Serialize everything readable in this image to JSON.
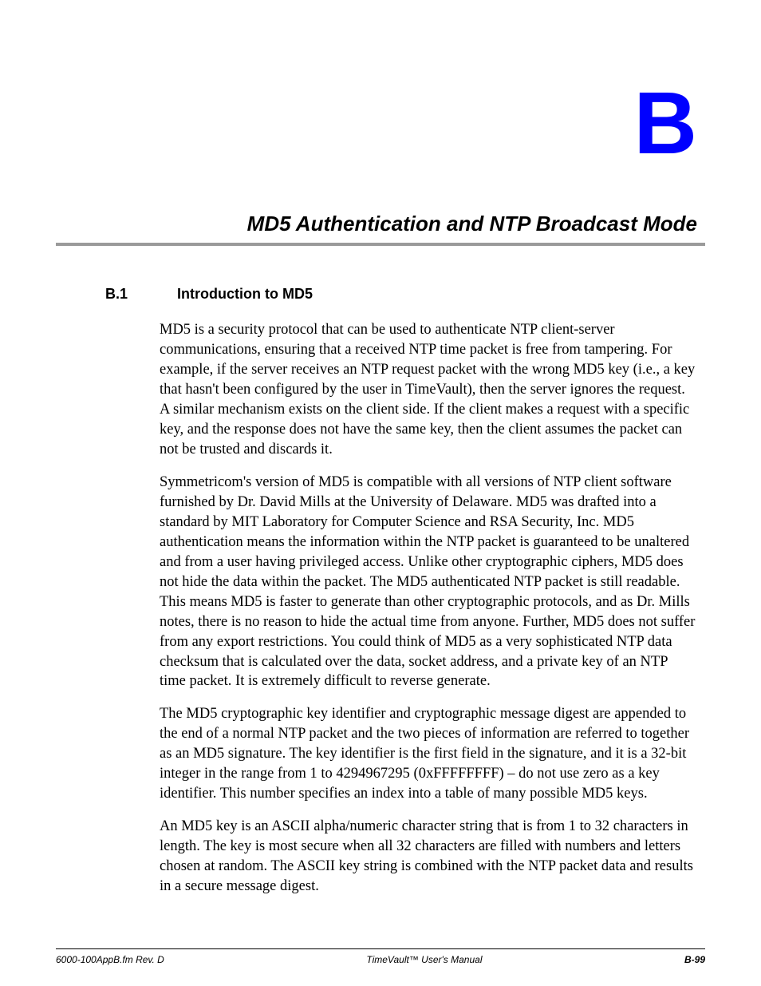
{
  "appendix_letter": "B",
  "chapter_title": "MD5 Authentication and NTP Broadcast Mode",
  "section": {
    "number": "B.1",
    "title": "Introduction to MD5"
  },
  "paragraphs": {
    "p1": "MD5 is a security protocol that can be used to authenticate NTP client-server communications, ensuring that a received NTP time packet is free from tampering.  For example, if the server receives an NTP request packet with the wrong MD5 key (i.e., a key that hasn't been configured by the user in TimeVault), then the server ignores the request.  A similar mechanism exists on the client side.  If the client makes a request with a specific key, and the response does not have the same key, then the client assumes the packet can not be trusted and discards it.",
    "p2": "Symmetricom's version of MD5 is compatible with all versions of NTP client software furnished by Dr. David Mills at the University of Delaware.  MD5 was drafted into a standard by MIT Laboratory for Computer Science and RSA Security, Inc.  MD5 authentication means the information within the NTP packet is guaranteed to be unaltered and from a user having privileged access.  Unlike other cryptographic ciphers, MD5 does not hide the data within the packet.  The MD5 authenticated NTP packet is still readable.  This means MD5 is faster to generate than other cryptographic protocols, and as Dr. Mills notes, there is no reason to hide the actual time from anyone.  Further, MD5 does not suffer from any export restrictions.  You could think of MD5 as a very sophisticated NTP data checksum that is calculated over the data, socket address, and a private key of an NTP time packet.  It is extremely difficult to reverse generate.",
    "p3": "The MD5 cryptographic key identifier and cryptographic message digest are appended to the end of a normal NTP packet and the two pieces of information are referred to together as an MD5 signature.  The key identifier is the first field in the signature, and it is a 32-bit integer in the range from 1 to 4294967295 (0xFFFFFFFF) – do not use zero as a key identifier.  This number specifies an index into a table of many possible MD5 keys.",
    "p4": "An MD5 key is an ASCII alpha/numeric character string that is from 1 to 32 characters in length.  The key is most secure when all 32 characters are filled with numbers and letters chosen at random.  The ASCII key string is combined with the NTP packet data and results in a secure message digest."
  },
  "footer": {
    "left": "6000-100AppB.fm  Rev. D",
    "center": "TimeVault™ User's Manual",
    "right": "B-99"
  },
  "colors": {
    "appendix_letter": "#0000ff",
    "rule": "#9a9a9a",
    "text": "#000000",
    "background": "#ffffff"
  }
}
